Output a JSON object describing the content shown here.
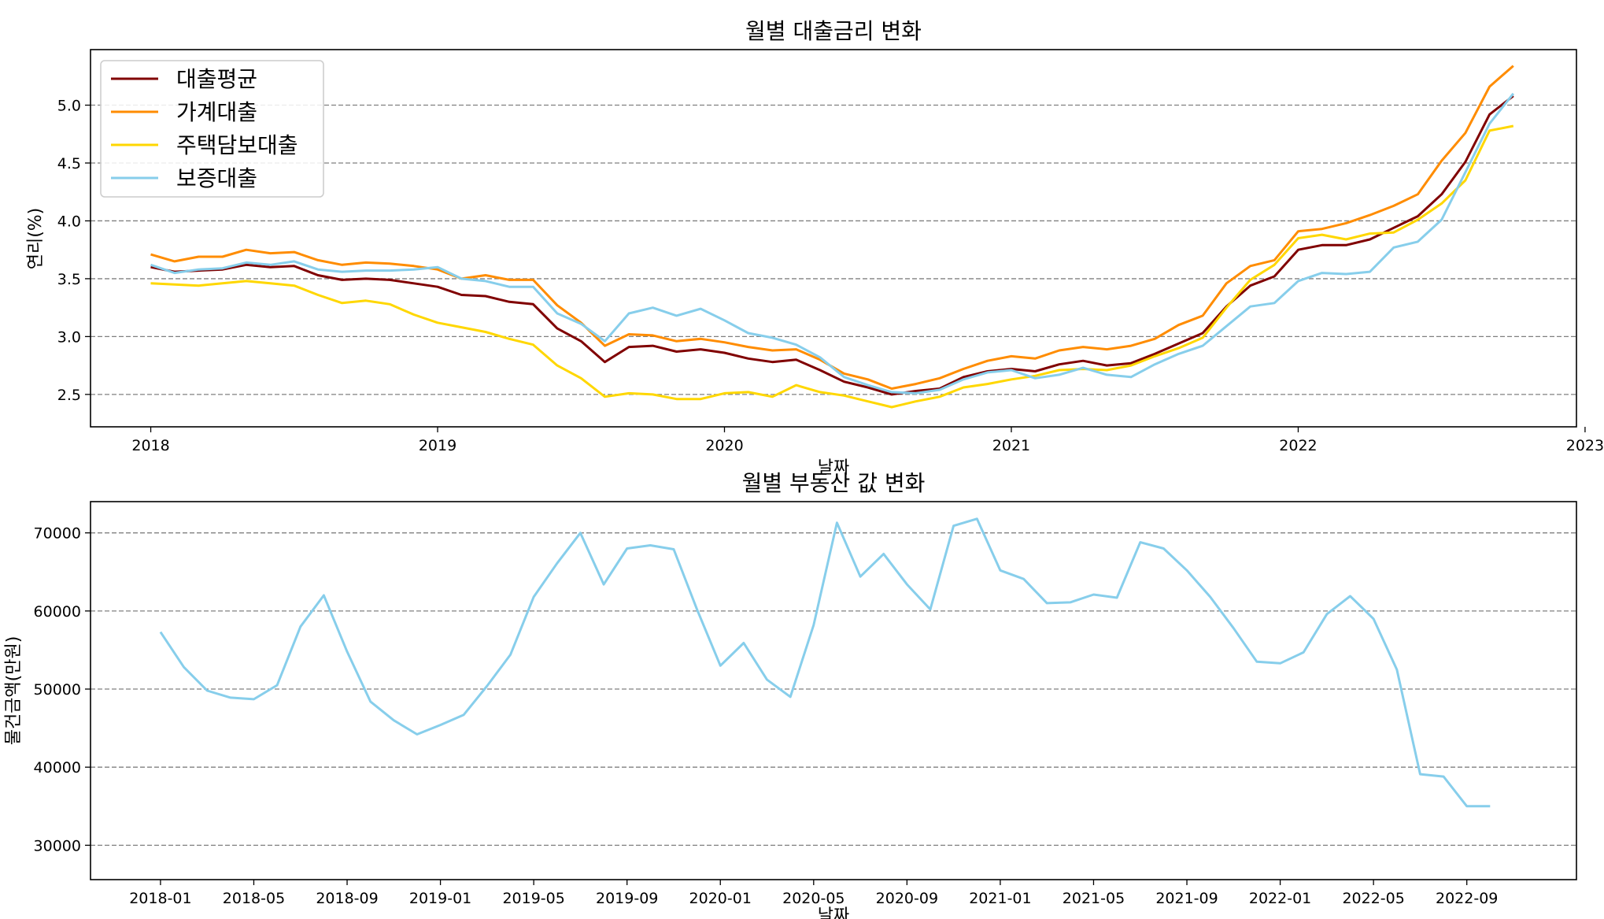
{
  "chart_data": [
    {
      "type": "line",
      "title": "월별 대출금리 변화",
      "xlabel": "날짜",
      "ylabel": "연리(%)",
      "x_ticks": [
        "2018",
        "2019",
        "2020",
        "2021",
        "2022",
        "2023"
      ],
      "y_ticks": [
        "2.5",
        "3.0",
        "3.5",
        "4.0",
        "4.5",
        "5.0"
      ],
      "xlim": [
        2017.79,
        2022.97
      ],
      "ylim": [
        2.22,
        5.48
      ],
      "grid": "y dashed",
      "legend": "top-left",
      "x": [
        2018.0,
        2018.083,
        2018.167,
        2018.25,
        2018.333,
        2018.417,
        2018.5,
        2018.583,
        2018.667,
        2018.75,
        2018.833,
        2018.917,
        2019.0,
        2019.083,
        2019.167,
        2019.25,
        2019.333,
        2019.417,
        2019.5,
        2019.583,
        2019.667,
        2019.75,
        2019.833,
        2019.917,
        2020.0,
        2020.083,
        2020.167,
        2020.25,
        2020.333,
        2020.417,
        2020.5,
        2020.583,
        2020.667,
        2020.75,
        2020.833,
        2020.917,
        2021.0,
        2021.083,
        2021.167,
        2021.25,
        2021.333,
        2021.417,
        2021.5,
        2021.583,
        2021.667,
        2021.75,
        2021.833,
        2021.917,
        2022.0,
        2022.083,
        2022.167,
        2022.25,
        2022.333,
        2022.417,
        2022.5,
        2022.583,
        2022.667,
        2022.75
      ],
      "series": [
        {
          "name": "대출평균",
          "color": "#800000",
          "values": [
            3.6,
            3.56,
            3.57,
            3.58,
            3.62,
            3.6,
            3.61,
            3.53,
            3.49,
            3.5,
            3.49,
            3.46,
            3.43,
            3.36,
            3.35,
            3.3,
            3.28,
            3.07,
            2.96,
            2.78,
            2.91,
            2.92,
            2.87,
            2.89,
            2.86,
            2.81,
            2.78,
            2.8,
            2.71,
            2.61,
            2.56,
            2.5,
            2.53,
            2.55,
            2.65,
            2.7,
            2.72,
            2.7,
            2.76,
            2.79,
            2.75,
            2.77,
            2.85,
            2.94,
            3.03,
            3.26,
            3.44,
            3.52,
            3.75,
            3.79,
            3.79,
            3.84,
            3.94,
            4.04,
            4.23,
            4.51,
            4.92,
            5.08
          ]
        },
        {
          "name": "가계대출",
          "color": "#ff8c00",
          "values": [
            3.71,
            3.65,
            3.69,
            3.69,
            3.75,
            3.72,
            3.73,
            3.66,
            3.62,
            3.64,
            3.63,
            3.61,
            3.58,
            3.5,
            3.53,
            3.49,
            3.49,
            3.27,
            3.12,
            2.92,
            3.02,
            3.01,
            2.96,
            2.98,
            2.95,
            2.91,
            2.88,
            2.89,
            2.8,
            2.68,
            2.63,
            2.55,
            2.59,
            2.64,
            2.72,
            2.79,
            2.83,
            2.81,
            2.88,
            2.91,
            2.89,
            2.92,
            2.98,
            3.1,
            3.18,
            3.46,
            3.61,
            3.66,
            3.91,
            3.93,
            3.98,
            4.05,
            4.13,
            4.23,
            4.52,
            4.76,
            5.16,
            5.34
          ]
        },
        {
          "name": "주택담보대출",
          "color": "#ffd700",
          "values": [
            3.46,
            3.45,
            3.44,
            3.46,
            3.48,
            3.46,
            3.44,
            3.36,
            3.29,
            3.31,
            3.28,
            3.19,
            3.12,
            3.08,
            3.04,
            2.98,
            2.93,
            2.75,
            2.64,
            2.48,
            2.51,
            2.5,
            2.46,
            2.46,
            2.51,
            2.52,
            2.48,
            2.58,
            2.52,
            2.49,
            2.44,
            2.39,
            2.44,
            2.48,
            2.56,
            2.59,
            2.63,
            2.66,
            2.71,
            2.72,
            2.71,
            2.75,
            2.83,
            2.9,
            2.99,
            3.25,
            3.49,
            3.62,
            3.85,
            3.88,
            3.84,
            3.89,
            3.9,
            4.01,
            4.15,
            4.35,
            4.78,
            4.82
          ]
        },
        {
          "name": "보증대출",
          "color": "#87ceeb",
          "values": [
            3.62,
            3.55,
            3.58,
            3.59,
            3.64,
            3.62,
            3.65,
            3.58,
            3.56,
            3.57,
            3.57,
            3.58,
            3.6,
            3.5,
            3.48,
            3.43,
            3.43,
            3.2,
            3.11,
            2.96,
            3.2,
            3.25,
            3.18,
            3.24,
            3.14,
            3.03,
            2.99,
            2.93,
            2.82,
            2.65,
            2.58,
            2.52,
            2.51,
            2.54,
            2.63,
            2.69,
            2.71,
            2.64,
            2.67,
            2.73,
            2.67,
            2.65,
            2.76,
            2.85,
            2.92,
            3.09,
            3.26,
            3.29,
            3.48,
            3.55,
            3.54,
            3.56,
            3.77,
            3.82,
            4.01,
            4.42,
            4.84,
            5.1
          ]
        }
      ]
    },
    {
      "type": "line",
      "title": "월별 부동산 값 변화",
      "xlabel": "날짜",
      "ylabel": "물건금액(만원)",
      "x_ticks": [
        "2018-01",
        "2018-05",
        "2018-09",
        "2019-01",
        "2019-05",
        "2019-09",
        "2020-01",
        "2020-05",
        "2020-09",
        "2021-01",
        "2021-05",
        "2021-09",
        "2022-01",
        "2022-05",
        "2022-09"
      ],
      "y_ticks": [
        "30000",
        "40000",
        "50000",
        "60000",
        "70000"
      ],
      "ylim": [
        25600,
        74000
      ],
      "grid": "y dashed",
      "x": [
        "2018-01",
        "2018-02",
        "2018-03",
        "2018-04",
        "2018-05",
        "2018-06",
        "2018-07",
        "2018-08",
        "2018-09",
        "2018-10",
        "2018-11",
        "2018-12",
        "2019-01",
        "2019-02",
        "2019-03",
        "2019-04",
        "2019-05",
        "2019-06",
        "2019-07",
        "2019-08",
        "2019-09",
        "2019-10",
        "2019-11",
        "2019-12",
        "2020-01",
        "2020-02",
        "2020-03",
        "2020-04",
        "2020-05",
        "2020-06",
        "2020-07",
        "2020-08",
        "2020-09",
        "2020-10",
        "2020-11",
        "2020-12",
        "2021-01",
        "2021-02",
        "2021-03",
        "2021-04",
        "2021-05",
        "2021-06",
        "2021-07",
        "2021-08",
        "2021-09",
        "2021-10",
        "2021-11",
        "2021-12",
        "2022-01",
        "2022-02",
        "2022-03",
        "2022-04",
        "2022-05",
        "2022-06",
        "2022-07",
        "2022-08",
        "2022-09",
        "2022-10"
      ],
      "series": [
        {
          "color": "#87ceeb",
          "values": [
            57300,
            52800,
            49800,
            48900,
            48700,
            50500,
            58000,
            62000,
            54800,
            48400,
            46000,
            44200,
            45400,
            46700,
            50400,
            54400,
            61800,
            66100,
            70000,
            63400,
            68000,
            68400,
            67900,
            60200,
            53000,
            55900,
            51200,
            49000,
            58200,
            71300,
            64400,
            67300,
            63400,
            60200,
            70900,
            71800,
            65200,
            64100,
            61000,
            61100,
            62100,
            61700,
            68800,
            68000,
            65200,
            61800,
            57800,
            53500,
            53300,
            54700,
            59600,
            61900,
            59000,
            52500,
            39100,
            38800,
            35000,
            35000
          ]
        }
      ]
    }
  ]
}
